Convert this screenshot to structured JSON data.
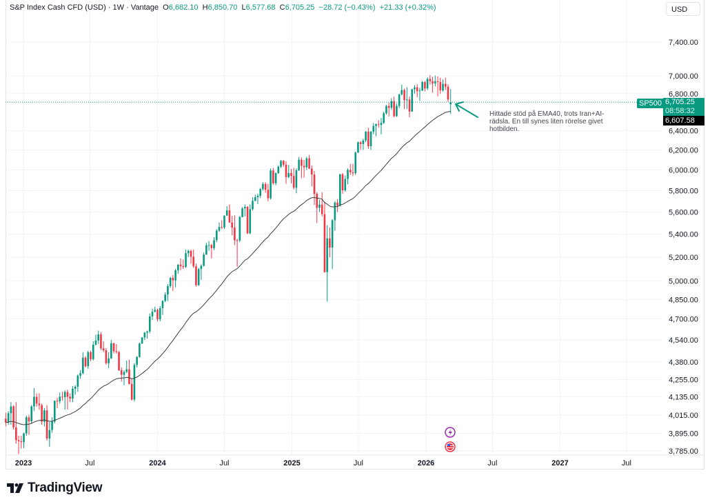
{
  "header": {
    "symbol": "S&P Index Cash CFD (USD) · 1W · Vantage",
    "o_label": "O",
    "o": "6,682.10",
    "h_label": "H",
    "h": "6,850.70",
    "l_label": "L",
    "l": "6,577.68",
    "c_label": "C",
    "c": "6,705.25",
    "change": "−28.72 (−0.43%)",
    "ext_change": "+21.33 (+0.32%)"
  },
  "currency_button": "USD",
  "price_tags": {
    "symbol": "SP500",
    "last_price": "6,705.25",
    "countdown": "08:58:32",
    "ema_value": "6,607.58"
  },
  "annotation": "Hittade stöd på EMA40, trots Iran+AI-rädsla. En till synes liten rörelse givet hotbilden.",
  "events": [
    {
      "icon": "lightning-icon",
      "color": "#9c27b0"
    },
    {
      "icon": "us-flag-icon",
      "color": "#f23645"
    }
  ],
  "logo": "TradingView",
  "colors": {
    "up": "#089981",
    "down": "#f23645",
    "ema": "#3c3c3c",
    "grid": "#f0f3fa"
  },
  "chart_data": {
    "type": "candlestick",
    "interval": "1W",
    "y_scale": "log",
    "grid": true,
    "overlay": {
      "name": "EMA40",
      "period": 40
    },
    "y_ticks": [
      "7,400.00",
      "7,000.00",
      "6,800.00",
      "6,400.00",
      "6,200.00",
      "6,000.00",
      "5,800.00",
      "5,600.00",
      "5,400.00",
      "5,200.00",
      "5,000.00",
      "4,850.00",
      "4,700.00",
      "4,540.00",
      "4,380.00",
      "4,255.00",
      "4,135.00",
      "4,015.00",
      "3,895.00",
      "3,785.00"
    ],
    "x_ticks": [
      {
        "label": "2023",
        "date": "2023-01-01",
        "bold": true
      },
      {
        "label": "Jul",
        "date": "2023-07-01",
        "bold": false
      },
      {
        "label": "2024",
        "date": "2024-01-01",
        "bold": true
      },
      {
        "label": "Jul",
        "date": "2024-07-01",
        "bold": false
      },
      {
        "label": "2025",
        "date": "2025-01-01",
        "bold": true
      },
      {
        "label": "Jul",
        "date": "2025-07-01",
        "bold": false
      },
      {
        "label": "2026",
        "date": "2026-01-01",
        "bold": true
      },
      {
        "label": "Jul",
        "date": "2026-07-01",
        "bold": false
      },
      {
        "label": "2027",
        "date": "2027-01-01",
        "bold": true
      },
      {
        "label": "Jul",
        "date": "2027-07-01",
        "bold": false
      }
    ],
    "x_range": [
      "2022-11-10",
      "2027-10-15"
    ],
    "columns": [
      "date",
      "open",
      "high",
      "low",
      "close"
    ],
    "candles": [
      [
        "2022-11-14",
        3990,
        4030,
        3940,
        3965
      ],
      [
        "2022-11-21",
        3965,
        4040,
        3950,
        4026
      ],
      [
        "2022-11-28",
        4026,
        4100,
        3950,
        4071
      ],
      [
        "2022-12-05",
        4071,
        4080,
        3920,
        3934
      ],
      [
        "2022-12-12",
        3934,
        4100,
        3830,
        3852
      ],
      [
        "2022-12-19",
        3852,
        3880,
        3765,
        3845
      ],
      [
        "2022-12-26",
        3845,
        3880,
        3800,
        3840
      ],
      [
        "2023-01-02",
        3840,
        3900,
        3802,
        3895
      ],
      [
        "2023-01-09",
        3895,
        4010,
        3880,
        3999
      ],
      [
        "2023-01-16",
        3999,
        4015,
        3885,
        3973
      ],
      [
        "2023-01-23",
        3973,
        4080,
        3960,
        4071
      ],
      [
        "2023-01-30",
        4071,
        4195,
        4040,
        4136
      ],
      [
        "2023-02-06",
        4136,
        4160,
        4070,
        4090
      ],
      [
        "2023-02-13",
        4090,
        4160,
        4050,
        4079
      ],
      [
        "2023-02-20",
        4079,
        4090,
        3950,
        3970
      ],
      [
        "2023-02-27",
        3970,
        4060,
        3940,
        4045
      ],
      [
        "2023-03-06",
        4045,
        4080,
        3850,
        3862
      ],
      [
        "2023-03-13",
        3862,
        3970,
        3810,
        3917
      ],
      [
        "2023-03-20",
        3917,
        4000,
        3900,
        3971
      ],
      [
        "2023-03-27",
        3971,
        4110,
        3960,
        4109
      ],
      [
        "2023-04-03",
        4109,
        4130,
        4060,
        4105
      ],
      [
        "2023-04-10",
        4105,
        4165,
        4090,
        4137
      ],
      [
        "2023-04-17",
        4137,
        4170,
        4110,
        4133
      ],
      [
        "2023-04-24",
        4133,
        4180,
        4050,
        4169
      ],
      [
        "2023-05-01",
        4169,
        4185,
        4050,
        4136
      ],
      [
        "2023-05-08",
        4136,
        4160,
        4100,
        4124
      ],
      [
        "2023-05-15",
        4124,
        4210,
        4100,
        4191
      ],
      [
        "2023-05-22",
        4191,
        4215,
        4150,
        4205
      ],
      [
        "2023-05-29",
        4205,
        4290,
        4170,
        4282
      ],
      [
        "2023-06-05",
        4282,
        4320,
        4260,
        4299
      ],
      [
        "2023-06-12",
        4299,
        4450,
        4290,
        4410
      ],
      [
        "2023-06-19",
        4410,
        4420,
        4340,
        4348
      ],
      [
        "2023-06-26",
        4348,
        4460,
        4330,
        4450
      ],
      [
        "2023-07-03",
        4450,
        4460,
        4385,
        4399
      ],
      [
        "2023-07-10",
        4399,
        4530,
        4390,
        4505
      ],
      [
        "2023-07-17",
        4505,
        4580,
        4500,
        4536
      ],
      [
        "2023-07-24",
        4536,
        4610,
        4510,
        4582
      ],
      [
        "2023-07-31",
        4582,
        4600,
        4465,
        4478
      ],
      [
        "2023-08-07",
        4478,
        4530,
        4450,
        4464
      ],
      [
        "2023-08-14",
        4464,
        4480,
        4360,
        4370
      ],
      [
        "2023-08-21",
        4370,
        4450,
        4335,
        4405
      ],
      [
        "2023-08-28",
        4405,
        4540,
        4400,
        4515
      ],
      [
        "2023-09-04",
        4515,
        4520,
        4440,
        4457
      ],
      [
        "2023-09-11",
        4457,
        4510,
        4440,
        4450
      ],
      [
        "2023-09-18",
        4450,
        4460,
        4315,
        4320
      ],
      [
        "2023-09-25",
        4320,
        4340,
        4240,
        4288
      ],
      [
        "2023-10-02",
        4288,
        4320,
        4215,
        4308
      ],
      [
        "2023-10-09",
        4308,
        4390,
        4300,
        4327
      ],
      [
        "2023-10-16",
        4327,
        4395,
        4220,
        4224
      ],
      [
        "2023-10-23",
        4224,
        4260,
        4110,
        4117
      ],
      [
        "2023-10-30",
        4117,
        4370,
        4103,
        4358
      ],
      [
        "2023-11-06",
        4358,
        4420,
        4340,
        4415
      ],
      [
        "2023-11-13",
        4415,
        4520,
        4410,
        4514
      ],
      [
        "2023-11-20",
        4514,
        4560,
        4510,
        4559
      ],
      [
        "2023-11-27",
        4559,
        4600,
        4540,
        4595
      ],
      [
        "2023-12-04",
        4595,
        4610,
        4550,
        4604
      ],
      [
        "2023-12-11",
        4604,
        4740,
        4590,
        4719
      ],
      [
        "2023-12-18",
        4719,
        4780,
        4690,
        4755
      ],
      [
        "2023-12-25",
        4755,
        4795,
        4750,
        4770
      ],
      [
        "2024-01-01",
        4770,
        4780,
        4680,
        4697
      ],
      [
        "2024-01-08",
        4697,
        4800,
        4680,
        4783
      ],
      [
        "2024-01-15",
        4783,
        4845,
        4730,
        4840
      ],
      [
        "2024-01-22",
        4840,
        4910,
        4830,
        4891
      ],
      [
        "2024-01-29",
        4891,
        4975,
        4840,
        4959
      ],
      [
        "2024-02-05",
        4959,
        5035,
        4945,
        5027
      ],
      [
        "2024-02-12",
        5027,
        5050,
        4920,
        5006
      ],
      [
        "2024-02-19",
        5006,
        5100,
        4950,
        5089
      ],
      [
        "2024-02-26",
        5089,
        5140,
        5060,
        5137
      ],
      [
        "2024-03-04",
        5137,
        5190,
        5090,
        5124
      ],
      [
        "2024-03-11",
        5124,
        5180,
        5100,
        5117
      ],
      [
        "2024-03-18",
        5117,
        5265,
        5110,
        5234
      ],
      [
        "2024-03-25",
        5234,
        5265,
        5200,
        5254
      ],
      [
        "2024-04-01",
        5254,
        5265,
        5145,
        5204
      ],
      [
        "2024-04-08",
        5204,
        5265,
        5110,
        5123
      ],
      [
        "2024-04-15",
        5123,
        5145,
        4955,
        4967
      ],
      [
        "2024-04-22",
        4967,
        5110,
        4960,
        5100
      ],
      [
        "2024-04-29",
        5100,
        5140,
        5010,
        5128
      ],
      [
        "2024-05-06",
        5128,
        5240,
        5120,
        5223
      ],
      [
        "2024-05-13",
        5223,
        5325,
        5220,
        5303
      ],
      [
        "2024-05-20",
        5303,
        5340,
        5255,
        5305
      ],
      [
        "2024-05-27",
        5305,
        5315,
        5190,
        5278
      ],
      [
        "2024-06-03",
        5278,
        5375,
        5260,
        5347
      ],
      [
        "2024-06-10",
        5347,
        5445,
        5330,
        5431
      ],
      [
        "2024-06-17",
        5431,
        5505,
        5420,
        5465
      ],
      [
        "2024-06-24",
        5465,
        5525,
        5445,
        5460
      ],
      [
        "2024-07-01",
        5460,
        5570,
        5445,
        5567
      ],
      [
        "2024-07-08",
        5567,
        5655,
        5565,
        5615
      ],
      [
        "2024-07-15",
        5615,
        5670,
        5500,
        5505
      ],
      [
        "2024-07-22",
        5505,
        5565,
        5390,
        5459
      ],
      [
        "2024-07-29",
        5459,
        5570,
        5305,
        5346
      ],
      [
        "2024-08-05",
        5346,
        5360,
        5120,
        5344
      ],
      [
        "2024-08-12",
        5344,
        5565,
        5330,
        5554
      ],
      [
        "2024-08-19",
        5554,
        5645,
        5550,
        5634
      ],
      [
        "2024-08-26",
        5634,
        5670,
        5560,
        5648
      ],
      [
        "2024-09-02",
        5648,
        5655,
        5400,
        5408
      ],
      [
        "2024-09-09",
        5408,
        5670,
        5400,
        5626
      ],
      [
        "2024-09-16",
        5626,
        5735,
        5615,
        5703
      ],
      [
        "2024-09-23",
        5703,
        5765,
        5700,
        5738
      ],
      [
        "2024-09-30",
        5738,
        5770,
        5675,
        5751
      ],
      [
        "2024-10-07",
        5751,
        5825,
        5730,
        5815
      ],
      [
        "2024-10-14",
        5815,
        5880,
        5800,
        5864
      ],
      [
        "2024-10-21",
        5864,
        5880,
        5780,
        5808
      ],
      [
        "2024-10-28",
        5808,
        5865,
        5700,
        5728
      ],
      [
        "2024-11-04",
        5728,
        6015,
        5715,
        5995
      ],
      [
        "2024-11-11",
        5995,
        6020,
        5855,
        5870
      ],
      [
        "2024-11-18",
        5870,
        5975,
        5850,
        5969
      ],
      [
        "2024-11-25",
        5969,
        6045,
        5960,
        6032
      ],
      [
        "2024-12-02",
        6032,
        6100,
        6020,
        6090
      ],
      [
        "2024-12-09",
        6090,
        6100,
        6030,
        6051
      ],
      [
        "2024-12-16",
        6051,
        6085,
        5865,
        5930
      ],
      [
        "2024-12-23",
        5930,
        6050,
        5920,
        5970
      ],
      [
        "2024-12-30",
        5970,
        6010,
        5870,
        5942
      ],
      [
        "2025-01-06",
        5942,
        6020,
        5810,
        5827
      ],
      [
        "2025-01-13",
        5827,
        6015,
        5775,
        5997
      ],
      [
        "2025-01-20",
        5997,
        6130,
        5990,
        6101
      ],
      [
        "2025-01-27",
        6101,
        6125,
        5920,
        6040
      ],
      [
        "2025-02-03",
        6040,
        6100,
        5925,
        6026
      ],
      [
        "2025-02-10",
        6026,
        6130,
        6000,
        6115
      ],
      [
        "2025-02-17",
        6115,
        6150,
        6010,
        6013
      ],
      [
        "2025-02-24",
        6013,
        6045,
        5840,
        5955
      ],
      [
        "2025-03-03",
        5955,
        5990,
        5665,
        5770
      ],
      [
        "2025-03-10",
        5770,
        5785,
        5500,
        5639
      ],
      [
        "2025-03-17",
        5639,
        5715,
        5600,
        5668
      ],
      [
        "2025-03-24",
        5668,
        5785,
        5560,
        5581
      ],
      [
        "2025-03-31",
        5581,
        5695,
        5070,
        5074
      ],
      [
        "2025-04-07",
        5074,
        5480,
        4835,
        5363
      ],
      [
        "2025-04-14",
        5363,
        5460,
        5200,
        5283
      ],
      [
        "2025-04-21",
        5283,
        5535,
        5100,
        5525
      ],
      [
        "2025-04-28",
        5525,
        5700,
        5430,
        5687
      ],
      [
        "2025-05-05",
        5687,
        5720,
        5600,
        5660
      ],
      [
        "2025-05-12",
        5660,
        5960,
        5650,
        5958
      ],
      [
        "2025-05-19",
        5958,
        5970,
        5770,
        5803
      ],
      [
        "2025-05-26",
        5803,
        5945,
        5790,
        5912
      ],
      [
        "2025-06-02",
        5912,
        6015,
        5860,
        6000
      ],
      [
        "2025-06-09",
        6000,
        6060,
        5950,
        5977
      ],
      [
        "2025-06-16",
        5977,
        6060,
        5940,
        5968
      ],
      [
        "2025-06-23",
        5968,
        6185,
        5950,
        6173
      ],
      [
        "2025-06-30",
        6173,
        6285,
        6170,
        6279
      ],
      [
        "2025-07-07",
        6279,
        6290,
        6200,
        6260
      ],
      [
        "2025-07-14",
        6260,
        6315,
        6200,
        6297
      ],
      [
        "2025-07-21",
        6297,
        6395,
        6280,
        6389
      ],
      [
        "2025-07-28",
        6389,
        6430,
        6210,
        6238
      ],
      [
        "2025-08-04",
        6238,
        6395,
        6200,
        6389
      ],
      [
        "2025-08-11",
        6389,
        6480,
        6360,
        6449
      ],
      [
        "2025-08-18",
        6449,
        6475,
        6340,
        6467
      ],
      [
        "2025-08-25",
        6467,
        6510,
        6430,
        6460
      ],
      [
        "2025-09-01",
        6460,
        6535,
        6360,
        6482
      ],
      [
        "2025-09-08",
        6482,
        6600,
        6470,
        6584
      ],
      [
        "2025-09-15",
        6584,
        6675,
        6570,
        6664
      ],
      [
        "2025-09-22",
        6664,
        6700,
        6550,
        6643
      ],
      [
        "2025-09-29",
        6643,
        6750,
        6620,
        6716
      ],
      [
        "2025-10-06",
        6716,
        6765,
        6540,
        6553
      ],
      [
        "2025-10-13",
        6553,
        6690,
        6545,
        6664
      ],
      [
        "2025-10-20",
        6664,
        6800,
        6640,
        6791
      ],
      [
        "2025-10-27",
        6791,
        6900,
        6780,
        6840
      ],
      [
        "2025-11-03",
        6840,
        6855,
        6630,
        6728
      ],
      [
        "2025-11-10",
        6728,
        6870,
        6630,
        6734
      ],
      [
        "2025-11-17",
        6734,
        6770,
        6540,
        6603
      ],
      [
        "2025-11-24",
        6603,
        6855,
        6600,
        6849
      ],
      [
        "2025-12-01",
        6849,
        6895,
        6800,
        6870
      ],
      [
        "2025-12-08",
        6870,
        6905,
        6760,
        6827
      ],
      [
        "2025-12-15",
        6827,
        6865,
        6720,
        6834
      ],
      [
        "2025-12-22",
        6834,
        6945,
        6830,
        6930
      ],
      [
        "2025-12-29",
        6930,
        6945,
        6825,
        6858
      ],
      [
        "2026-01-05",
        6858,
        6985,
        6840,
        6966
      ],
      [
        "2026-01-12",
        6966,
        7010,
        6900,
        6940
      ],
      [
        "2026-01-19",
        6940,
        6990,
        6810,
        6915
      ],
      [
        "2026-01-26",
        6915,
        7005,
        6880,
        6939
      ],
      [
        "2026-02-02",
        6939,
        6995,
        6770,
        6932
      ],
      [
        "2026-02-09",
        6932,
        6980,
        6800,
        6836
      ],
      [
        "2026-02-16",
        6836,
        6960,
        6820,
        6910
      ],
      [
        "2026-02-23",
        6910,
        6980,
        6840,
        6878
      ],
      [
        "2026-03-02",
        6878,
        6905,
        6710,
        6734
      ],
      [
        "2026-03-09",
        6682.1,
        6850.7,
        6577.68,
        6705.25
      ]
    ]
  }
}
